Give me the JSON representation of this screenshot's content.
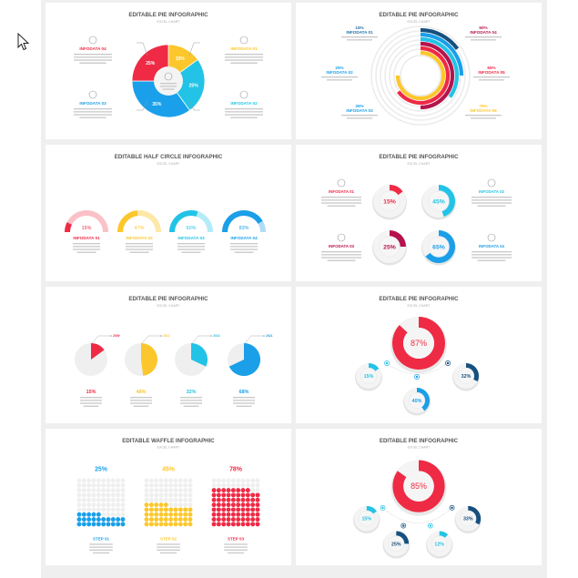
{
  "colors": {
    "red": "#ef2a45",
    "yellow": "#fcc72c",
    "cyan": "#22c3e6",
    "blue": "#1a9fe8",
    "navy": "#17507e",
    "crimson": "#b5134d",
    "track": "#ececec",
    "title": "#555555",
    "sub": "#aaaaaa"
  },
  "slides": [
    {
      "type": "donut4",
      "title": "EDITABLE PIE INFOGRAPHIC",
      "subtitle": "EXCEL CHART",
      "items": [
        {
          "label": "INFODATA 01",
          "pct": "15%",
          "value": 15,
          "color": "#fcc72c"
        },
        {
          "label": "INFODATA 02",
          "pct": "25%",
          "value": 25,
          "color": "#22c3e6"
        },
        {
          "label": "INFODATA 03",
          "pct": "35%",
          "value": 35,
          "color": "#1aa0ea"
        },
        {
          "label": "INFODATA 04",
          "pct": "25%",
          "value": 25,
          "color": "#ef2a45"
        }
      ]
    },
    {
      "type": "radial",
      "title": "EDITABLE PIE INFOGRAPHIC",
      "subtitle": "EXCEL CHART",
      "items": [
        {
          "label": "INFODATA 01",
          "pct": "15%",
          "value": 15,
          "color": "#17507e"
        },
        {
          "label": "INFODATA 02",
          "pct": "25%",
          "value": 25,
          "color": "#1a9fe8"
        },
        {
          "label": "INFODATA 03",
          "pct": "35%",
          "value": 35,
          "color": "#22c3e6"
        },
        {
          "label": "INFODATA 04",
          "pct": "50%",
          "value": 50,
          "color": "#b5134d"
        },
        {
          "label": "INFODATA 05",
          "pct": "65%",
          "value": 65,
          "color": "#ef2a45"
        },
        {
          "label": "INFODATA 06",
          "pct": "75%",
          "value": 75,
          "color": "#fcc72c"
        }
      ]
    },
    {
      "type": "half",
      "title": "EDITABLE HALF CIRCLE INFOGRAPHIC",
      "subtitle": "EXCEL CHART",
      "items": [
        {
          "label": "INFODATA 01",
          "pct": "15%",
          "value": 15,
          "color": "#ef2a45",
          "light": "#fbc1c8"
        },
        {
          "label": "INFODATA 02",
          "pct": "47%",
          "value": 47,
          "color": "#fcc72c",
          "light": "#fde8a8"
        },
        {
          "label": "INFODATA 03",
          "pct": "60%",
          "value": 60,
          "color": "#22c3e6",
          "light": "#b3ecf7"
        },
        {
          "label": "INFODATA 04",
          "pct": "83%",
          "value": 83,
          "color": "#1a9fe8",
          "light": "#b1dcf7"
        }
      ]
    },
    {
      "type": "donutgrid",
      "title": "EDITABLE PIE INFOGRAPHIC",
      "subtitle": "EXCEL CHART",
      "items": [
        {
          "label": "INFODATA 01",
          "pct": "15%",
          "value": 15,
          "color": "#ef2a45"
        },
        {
          "label": "INFODATA 02",
          "pct": "45%",
          "value": 45,
          "color": "#22c3e6"
        },
        {
          "label": "INFODATA 03",
          "pct": "25%",
          "value": 25,
          "color": "#b5134d"
        },
        {
          "label": "INFODATA 04",
          "pct": "65%",
          "value": 65,
          "color": "#1a9fe8"
        }
      ]
    },
    {
      "type": "pies",
      "title": "EDITABLE PIE INFOGRAPHIC",
      "subtitle": "EXCEL CHART",
      "items": [
        {
          "year": "2009",
          "pct": "15%",
          "value": 15,
          "color": "#ef2a45"
        },
        {
          "year": "2012",
          "pct": "48%",
          "value": 48,
          "color": "#fcc72c"
        },
        {
          "year": "2015",
          "pct": "32%",
          "value": 32,
          "color": "#22c3e6"
        },
        {
          "year": "2021",
          "pct": "68%",
          "value": 68,
          "color": "#1a9fe8"
        }
      ]
    },
    {
      "type": "bubbles",
      "title": "EDITABLE PIE INFOGRAPHIC",
      "subtitle": "EXCEL CHART",
      "main": {
        "pct": "87%",
        "value": 87,
        "color": "#ef2a45"
      },
      "items": [
        {
          "pct": "15%",
          "value": 15,
          "color": "#22c3e6"
        },
        {
          "pct": "40%",
          "value": 40,
          "color": "#1a9fe8"
        },
        {
          "pct": "32%",
          "value": 32,
          "color": "#17507e"
        }
      ]
    },
    {
      "type": "waffle",
      "title": "EDITABLE WAFFLE INFOGRAPHIC",
      "subtitle": "EXCEL CHART",
      "items": [
        {
          "label": "STEP 01",
          "pct": "25%",
          "value": 25,
          "color": "#1a9fe8"
        },
        {
          "label": "STEP 02",
          "pct": "45%",
          "value": 45,
          "color": "#fcc72c"
        },
        {
          "label": "STEP 03",
          "pct": "78%",
          "value": 78,
          "color": "#ef2a45"
        }
      ]
    },
    {
      "type": "bubbles",
      "title": "EDITABLE PIE INFOGRAPHIC",
      "subtitle": "EXCEL CHART",
      "main": {
        "pct": "85%",
        "value": 85,
        "color": "#ef2a45"
      },
      "items": [
        {
          "pct": "15%",
          "value": 15,
          "color": "#22c3e6"
        },
        {
          "pct": "25%",
          "value": 25,
          "color": "#17507e"
        },
        {
          "pct": "12%",
          "value": 12,
          "color": "#22c3e6"
        },
        {
          "pct": "33%",
          "value": 33,
          "color": "#17507e"
        }
      ]
    }
  ]
}
